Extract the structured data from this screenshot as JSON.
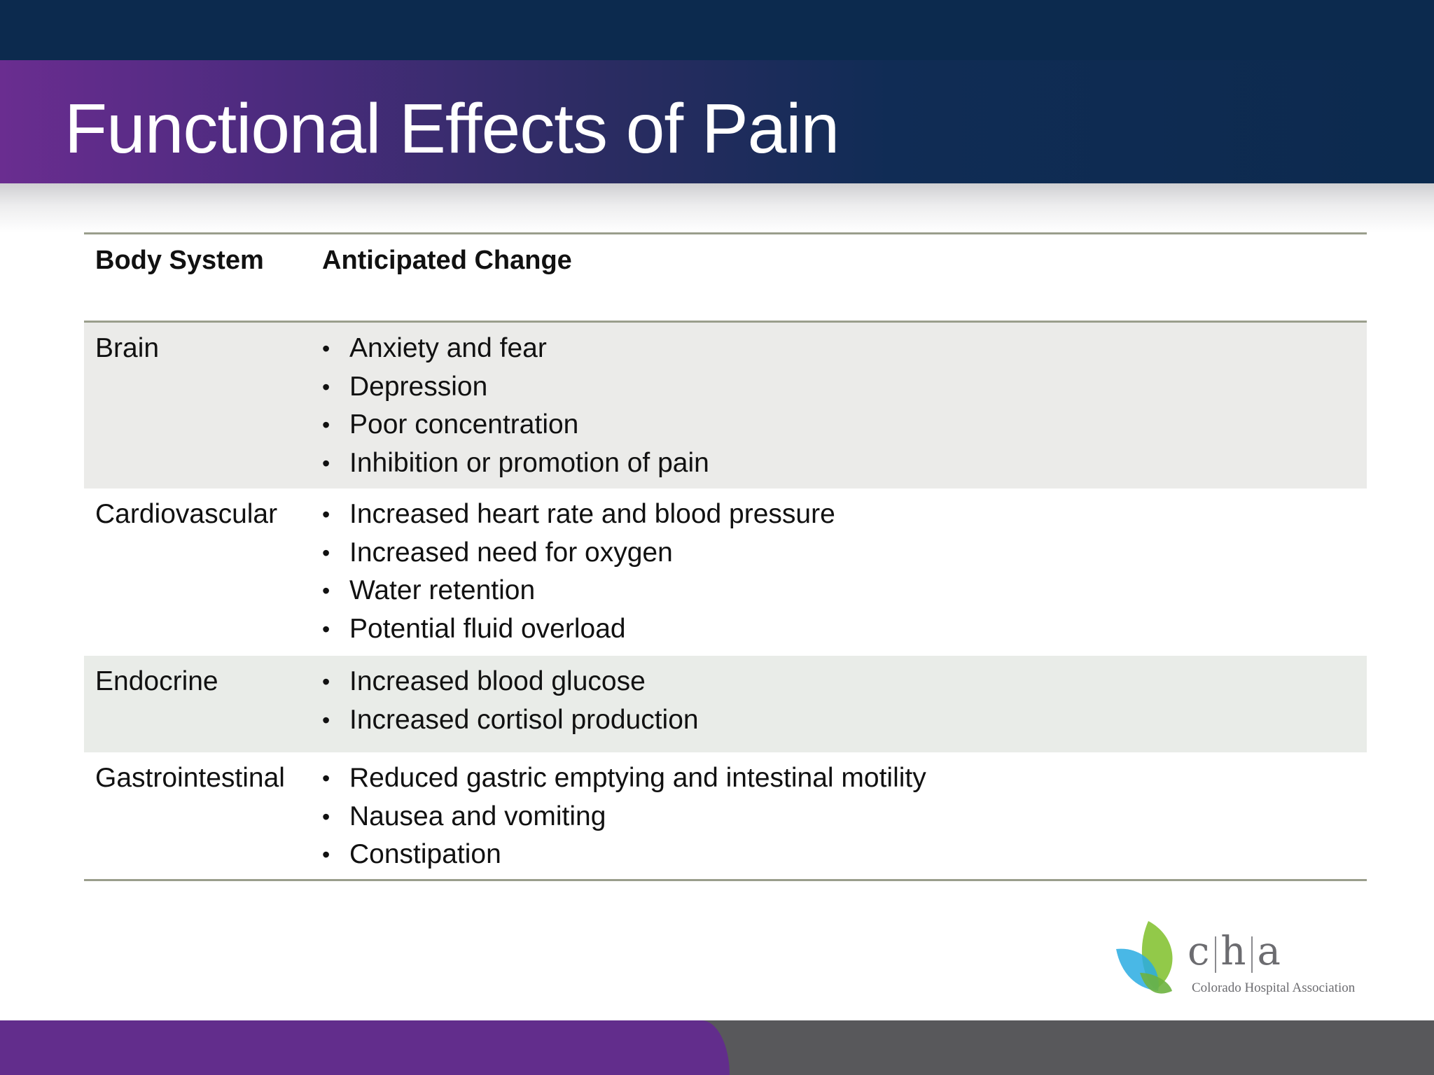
{
  "slide": {
    "title": "Functional Effects of Pain"
  },
  "table": {
    "headers": [
      "Body System",
      "Anticipated Change"
    ],
    "rows": [
      {
        "system": "Brain",
        "changes": [
          "Anxiety and fear",
          "Depression",
          "Poor concentration",
          "Inhibition or promotion of pain"
        ]
      },
      {
        "system": "Cardiovascular",
        "changes": [
          "Increased heart rate and blood pressure",
          "Increased need for oxygen",
          "Water retention",
          "Potential fluid overload"
        ]
      },
      {
        "system": "Endocrine",
        "changes": [
          "Increased blood glucose",
          "Increased cortisol production"
        ]
      },
      {
        "system": "Gastrointestinal",
        "changes": [
          "Reduced gastric emptying and intestinal motility",
          "Nausea and vomiting",
          "Constipation"
        ]
      }
    ]
  },
  "logo": {
    "letters": [
      "c",
      "h",
      "a"
    ],
    "subtitle": "Colorado Hospital Association"
  },
  "colors": {
    "header_navy": "#0c2a4e",
    "accent_purple": "#622d8c",
    "footer_gray": "#58585b",
    "row_shade": "#ebebe9",
    "leaf_green": "#8cc63f",
    "leaf_blue": "#29abe2"
  }
}
